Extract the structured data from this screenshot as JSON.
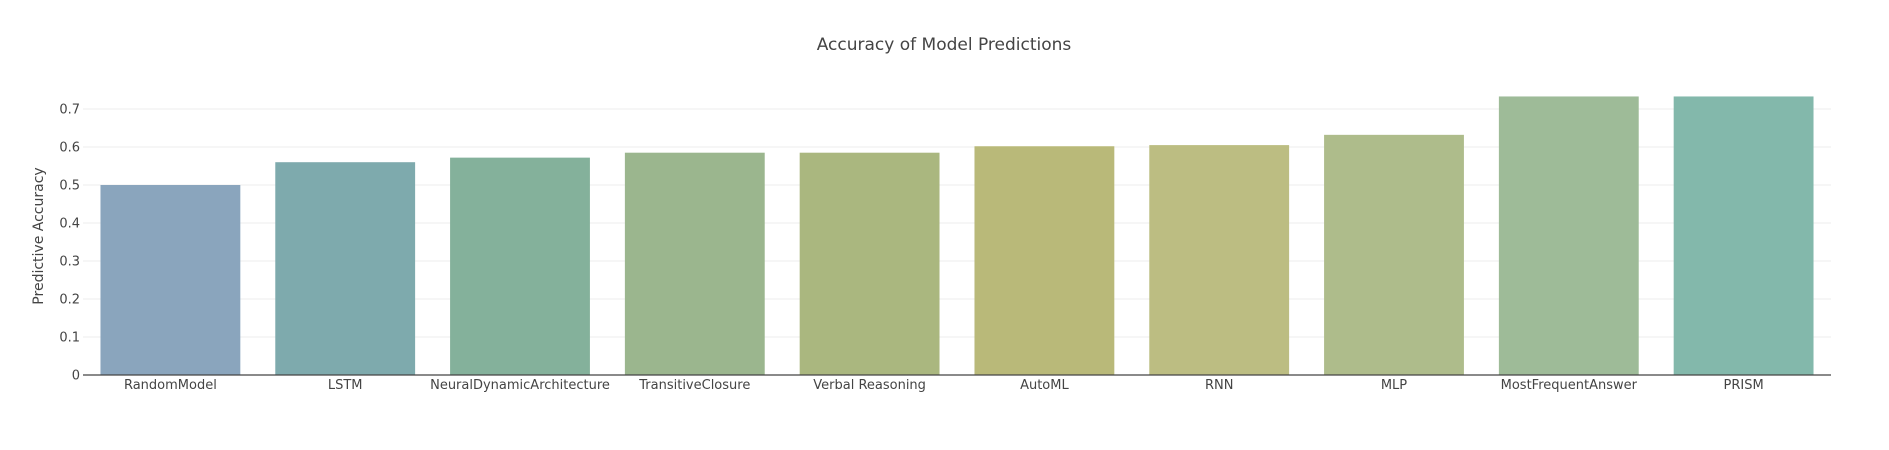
{
  "chart_data": {
    "type": "bar",
    "title": "Accuracy of Model Predictions",
    "xlabel": "",
    "ylabel": "Predictive Accuracy",
    "ylim": [
      0,
      0.75
    ],
    "yticks": [
      0,
      0.1,
      0.2,
      0.3,
      0.4,
      0.5,
      0.6,
      0.7
    ],
    "ytick_labels": [
      "0",
      "0.1",
      "0.2",
      "0.3",
      "0.4",
      "0.5",
      "0.6",
      "0.7"
    ],
    "grid": true,
    "legend": "none",
    "categories": [
      "RandomModel",
      "LSTM",
      "NeuralDynamicArchitecture",
      "TransitiveClosure",
      "Verbal Reasoning",
      "AutoML",
      "RNN",
      "MLP",
      "MostFrequentAnswer",
      "PRISM"
    ],
    "values": [
      0.5,
      0.56,
      0.572,
      0.585,
      0.585,
      0.602,
      0.605,
      0.632,
      0.733,
      0.733
    ],
    "colors": [
      "#8aa5bd",
      "#7eaaad",
      "#84b19b",
      "#9bb68e",
      "#aab77f",
      "#b9b979",
      "#bcbd82",
      "#aebc8b",
      "#9ebb98",
      "#83b8ab"
    ]
  }
}
